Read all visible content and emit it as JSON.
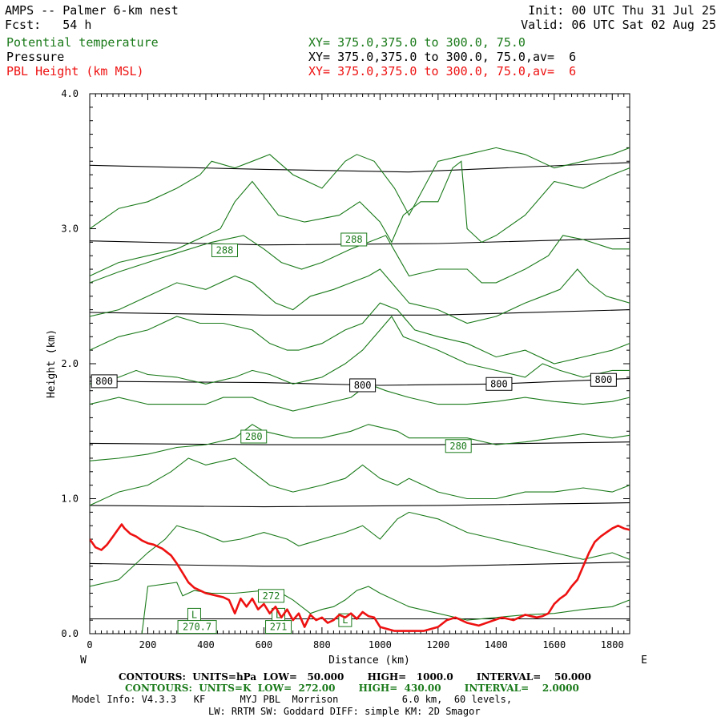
{
  "header": {
    "title": "AMPS -- Palmer 6-km nest",
    "fcst": "Fcst:   54 h",
    "init": "Init: 00 UTC Thu 31 Jul 25",
    "valid": "Valid: 06 UTC Sat 02 Aug 25",
    "field1": "Potential temperature",
    "field1_xy": "XY= 375.0,375.0 to 300.0, 75.0",
    "field2": "Pressure",
    "field2_xy": "XY= 375.0,375.0 to 300.0, 75.0,av=  6",
    "field3": "PBL Height (km MSL)",
    "field3_xy": "XY= 375.0,375.0 to 300.0, 75.0,av=  6"
  },
  "colors": {
    "theta": "#1a7a1a",
    "pressure": "#000000",
    "pbl": "#ee1111"
  },
  "chart_data": {
    "type": "line",
    "xlabel": "Distance (km)",
    "ylabel": "Height (km)",
    "xlim": [
      0,
      1860
    ],
    "ylim": [
      0,
      4.0
    ],
    "x_ticks": [
      "0",
      "200",
      "400",
      "600",
      "800",
      "1000",
      "1200",
      "1400",
      "1600",
      "1800"
    ],
    "y_ticks": [
      "0.0",
      "1.0",
      "2.0",
      "3.0",
      "4.0"
    ],
    "west_label": "W",
    "east_label": "E",
    "pressure_contours": [
      {
        "level": 1000,
        "x": [
          0,
          1860
        ],
        "y": [
          0.11,
          0.11
        ]
      },
      {
        "level": 950,
        "x": [
          0,
          600,
          1200,
          1860
        ],
        "y": [
          0.52,
          0.5,
          0.5,
          0.53
        ]
      },
      {
        "level": 900,
        "x": [
          0,
          600,
          1200,
          1860
        ],
        "y": [
          0.95,
          0.94,
          0.95,
          0.97
        ]
      },
      {
        "level": 850,
        "x": [
          0,
          600,
          1200,
          1860
        ],
        "y": [
          1.41,
          1.4,
          1.4,
          1.42
        ]
      },
      {
        "level": 800,
        "x": [
          0,
          600,
          1000,
          1400,
          1860
        ],
        "y": [
          1.87,
          1.86,
          1.84,
          1.85,
          1.89
        ]
      },
      {
        "level": 750,
        "x": [
          0,
          600,
          1200,
          1860
        ],
        "y": [
          2.38,
          2.36,
          2.36,
          2.4
        ]
      },
      {
        "level": 700,
        "x": [
          0,
          600,
          1200,
          1860
        ],
        "y": [
          2.91,
          2.88,
          2.89,
          2.93
        ]
      },
      {
        "level": 650,
        "x": [
          0,
          600,
          1100,
          1860
        ],
        "y": [
          3.47,
          3.44,
          3.42,
          3.49
        ]
      }
    ],
    "pressure_labels": [
      {
        "text": "800",
        "x": 50,
        "y": 1.87
      },
      {
        "text": "800",
        "x": 940,
        "y": 1.84
      },
      {
        "text": "800",
        "x": 1410,
        "y": 1.85
      },
      {
        "text": "800",
        "x": 1770,
        "y": 1.88
      }
    ],
    "theta_contours": [
      {
        "x": [
          0,
          100,
          200,
          300,
          380,
          420,
          500,
          560,
          620,
          700,
          800,
          880,
          920,
          980,
          1050,
          1100,
          1200,
          1300,
          1400,
          1500,
          1600,
          1700,
          1800,
          1860
        ],
        "y": [
          3.0,
          3.15,
          3.2,
          3.3,
          3.4,
          3.5,
          3.45,
          3.5,
          3.55,
          3.4,
          3.3,
          3.5,
          3.55,
          3.5,
          3.3,
          3.1,
          3.5,
          3.55,
          3.6,
          3.55,
          3.45,
          3.5,
          3.55,
          3.6
        ]
      },
      {
        "x": [
          0,
          100,
          200,
          300,
          450,
          500,
          560,
          650,
          740,
          860,
          930,
          1000,
          1040,
          1080,
          1140,
          1200,
          1250,
          1280,
          1300,
          1350,
          1400,
          1500,
          1600,
          1700,
          1800,
          1860
        ],
        "y": [
          2.65,
          2.75,
          2.8,
          2.85,
          3.0,
          3.2,
          3.35,
          3.1,
          3.05,
          3.1,
          3.2,
          3.05,
          2.9,
          3.1,
          3.2,
          3.2,
          3.45,
          3.5,
          3.0,
          2.9,
          2.95,
          3.1,
          3.35,
          3.3,
          3.4,
          3.45
        ]
      },
      {
        "x": [
          0,
          100,
          200,
          300,
          420,
          530,
          600,
          660,
          730,
          800,
          900,
          960,
          1020,
          1060,
          1100,
          1200,
          1300,
          1350,
          1400,
          1500,
          1580,
          1630,
          1700,
          1800,
          1860
        ],
        "y": [
          2.6,
          2.68,
          2.75,
          2.82,
          2.9,
          2.95,
          2.85,
          2.75,
          2.7,
          2.75,
          2.85,
          2.9,
          2.95,
          2.8,
          2.65,
          2.7,
          2.7,
          2.6,
          2.6,
          2.7,
          2.8,
          2.95,
          2.92,
          2.85,
          2.85
        ]
      },
      {
        "x": [
          0,
          100,
          200,
          300,
          400,
          500,
          560,
          640,
          700,
          760,
          840,
          900,
          960,
          1000,
          1040,
          1100,
          1200,
          1300,
          1400,
          1500,
          1560,
          1620,
          1680,
          1720,
          1780,
          1860
        ],
        "y": [
          2.35,
          2.4,
          2.5,
          2.6,
          2.55,
          2.65,
          2.6,
          2.45,
          2.4,
          2.5,
          2.55,
          2.6,
          2.65,
          2.7,
          2.6,
          2.45,
          2.4,
          2.3,
          2.35,
          2.45,
          2.5,
          2.55,
          2.7,
          2.6,
          2.5,
          2.45
        ]
      },
      {
        "x": [
          0,
          100,
          200,
          300,
          380,
          460,
          560,
          620,
          680,
          720,
          800,
          880,
          940,
          1000,
          1060,
          1120,
          1200,
          1300,
          1400,
          1500,
          1600,
          1700,
          1800,
          1860
        ],
        "y": [
          2.1,
          2.2,
          2.25,
          2.35,
          2.3,
          2.3,
          2.25,
          2.15,
          2.1,
          2.1,
          2.15,
          2.25,
          2.3,
          2.45,
          2.4,
          2.25,
          2.2,
          2.15,
          2.05,
          2.1,
          2.0,
          2.05,
          2.1,
          2.15
        ]
      },
      {
        "x": [
          0,
          100,
          160,
          200,
          300,
          400,
          500,
          560,
          620,
          700,
          800,
          880,
          940,
          1000,
          1040,
          1080,
          1200,
          1300,
          1400,
          1500,
          1560,
          1620,
          1700,
          1800,
          1860
        ],
        "y": [
          1.85,
          1.9,
          1.95,
          1.92,
          1.9,
          1.85,
          1.9,
          1.95,
          1.92,
          1.85,
          1.9,
          2.0,
          2.1,
          2.25,
          2.35,
          2.2,
          2.1,
          2.0,
          1.95,
          1.9,
          2.0,
          1.95,
          1.9,
          1.95,
          1.95
        ]
      },
      {
        "x": [
          0,
          100,
          200,
          300,
          400,
          460,
          560,
          620,
          700,
          800,
          900,
          960,
          1020,
          1100,
          1200,
          1300,
          1400,
          1500,
          1600,
          1700,
          1800,
          1860
        ],
        "y": [
          1.7,
          1.75,
          1.7,
          1.7,
          1.7,
          1.75,
          1.75,
          1.7,
          1.65,
          1.7,
          1.75,
          1.85,
          1.8,
          1.75,
          1.7,
          1.7,
          1.72,
          1.75,
          1.72,
          1.7,
          1.72,
          1.75
        ]
      },
      {
        "x": [
          0,
          100,
          200,
          300,
          400,
          500,
          560,
          600,
          700,
          800,
          900,
          960,
          1060,
          1100,
          1200,
          1300,
          1400,
          1500,
          1600,
          1700,
          1800,
          1860
        ],
        "y": [
          1.28,
          1.3,
          1.33,
          1.38,
          1.4,
          1.45,
          1.55,
          1.5,
          1.45,
          1.45,
          1.5,
          1.55,
          1.5,
          1.45,
          1.45,
          1.45,
          1.4,
          1.42,
          1.45,
          1.48,
          1.45,
          1.47
        ]
      },
      {
        "x": [
          0,
          100,
          200,
          280,
          340,
          400,
          500,
          560,
          620,
          700,
          800,
          880,
          940,
          1000,
          1060,
          1100,
          1200,
          1300,
          1400,
          1500,
          1600,
          1700,
          1800,
          1860
        ],
        "y": [
          0.95,
          1.05,
          1.1,
          1.2,
          1.3,
          1.25,
          1.3,
          1.2,
          1.1,
          1.05,
          1.1,
          1.15,
          1.25,
          1.15,
          1.1,
          1.15,
          1.05,
          1.0,
          1.0,
          1.05,
          1.05,
          1.08,
          1.05,
          1.1
        ]
      },
      {
        "x": [
          0,
          100,
          200,
          260,
          300,
          380,
          460,
          520,
          600,
          680,
          720,
          800,
          880,
          940,
          1000,
          1060,
          1100,
          1200,
          1300,
          1400,
          1500,
          1600,
          1700,
          1800,
          1860
        ],
        "y": [
          0.35,
          0.4,
          0.6,
          0.7,
          0.8,
          0.75,
          0.68,
          0.7,
          0.75,
          0.7,
          0.65,
          0.7,
          0.75,
          0.8,
          0.7,
          0.85,
          0.9,
          0.85,
          0.75,
          0.7,
          0.65,
          0.6,
          0.55,
          0.6,
          0.55
        ]
      },
      {
        "x": [
          180,
          200,
          300,
          320,
          360,
          420,
          500,
          600,
          640,
          660,
          700,
          760,
          800,
          840,
          880,
          920,
          960,
          1000,
          1100,
          1200,
          1300,
          1400,
          1500,
          1600,
          1700,
          1800,
          1860
        ],
        "y": [
          0.0,
          0.35,
          0.38,
          0.28,
          0.32,
          0.3,
          0.3,
          0.32,
          0.28,
          0.3,
          0.25,
          0.15,
          0.18,
          0.2,
          0.25,
          0.32,
          0.35,
          0.3,
          0.2,
          0.15,
          0.1,
          0.12,
          0.14,
          0.15,
          0.18,
          0.2,
          0.25
        ]
      }
    ],
    "theta_labels": [
      {
        "text": "288",
        "x": 465,
        "y": 2.84
      },
      {
        "text": "288",
        "x": 910,
        "y": 2.92
      },
      {
        "text": "280",
        "x": 565,
        "y": 1.46
      },
      {
        "text": "280",
        "x": 1270,
        "y": 1.39
      },
      {
        "text": "272",
        "x": 625,
        "y": 0.28
      },
      {
        "text": "L",
        "x": 360,
        "y": 0.14
      },
      {
        "text": "270.7",
        "x": 370,
        "y": 0.05
      },
      {
        "text": "L",
        "x": 650,
        "y": 0.14
      },
      {
        "text": "271",
        "x": 650,
        "y": 0.05
      },
      {
        "text": "L",
        "x": 880,
        "y": 0.1
      }
    ],
    "pbl_height": {
      "x": [
        0,
        20,
        40,
        60,
        80,
        100,
        110,
        120,
        140,
        160,
        180,
        200,
        220,
        250,
        280,
        300,
        320,
        340,
        360,
        380,
        400,
        420,
        440,
        460,
        480,
        500,
        520,
        540,
        560,
        580,
        600,
        620,
        640,
        660,
        680,
        700,
        720,
        740,
        760,
        780,
        800,
        820,
        840,
        860,
        880,
        900,
        920,
        940,
        960,
        980,
        1000,
        1050,
        1100,
        1150,
        1200,
        1230,
        1260,
        1300,
        1340,
        1380,
        1420,
        1460,
        1500,
        1540,
        1560,
        1580,
        1600,
        1620,
        1640,
        1660,
        1680,
        1700,
        1720,
        1740,
        1760,
        1780,
        1800,
        1820,
        1840,
        1860
      ],
      "y": [
        0.7,
        0.64,
        0.62,
        0.66,
        0.72,
        0.78,
        0.81,
        0.78,
        0.74,
        0.72,
        0.69,
        0.67,
        0.66,
        0.63,
        0.58,
        0.52,
        0.45,
        0.38,
        0.34,
        0.32,
        0.3,
        0.29,
        0.28,
        0.27,
        0.25,
        0.15,
        0.26,
        0.2,
        0.26,
        0.18,
        0.22,
        0.15,
        0.2,
        0.12,
        0.18,
        0.1,
        0.15,
        0.05,
        0.14,
        0.1,
        0.12,
        0.08,
        0.1,
        0.14,
        0.12,
        0.15,
        0.11,
        0.16,
        0.13,
        0.12,
        0.05,
        0.02,
        0.02,
        0.02,
        0.05,
        0.1,
        0.12,
        0.08,
        0.06,
        0.09,
        0.12,
        0.1,
        0.14,
        0.12,
        0.13,
        0.15,
        0.22,
        0.26,
        0.29,
        0.35,
        0.4,
        0.5,
        0.6,
        0.68,
        0.72,
        0.75,
        0.78,
        0.8,
        0.78,
        0.77
      ]
    }
  },
  "footer": {
    "line1": "CONTOURS:  UNITS=hPa  LOW=   50.000       HIGH=   1000.0       INTERVAL=    50.000",
    "line2": "CONTOURS:  UNITS=K  LOW=  272.00       HIGH=  430.00       INTERVAL=    2.0000",
    "line3": "Model Info: V4.3.3   KF      MYJ PBL  Morrison           6.0 km,  60 levels,",
    "line4": "LW: RRTM SW: Goddard DIFF: simple KM: 2D Smagor"
  }
}
